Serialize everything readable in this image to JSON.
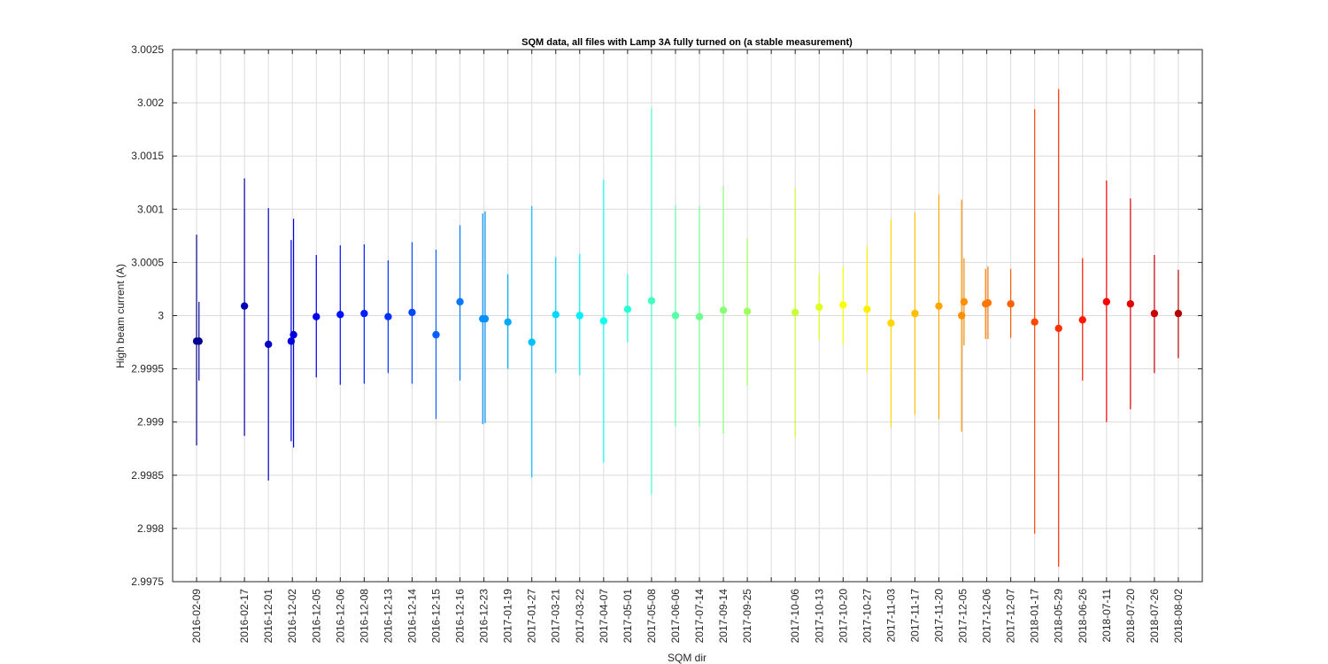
{
  "chart_data": {
    "type": "scatter",
    "title": "SQM data, all files with Lamp 3A fully turned on (a stable measurement)",
    "xlabel": "SQM dir",
    "ylabel": "High beam current (A)",
    "ylim": [
      2.9975,
      3.0025
    ],
    "yticks": [
      "2.9975",
      "2.998",
      "2.9985",
      "2.999",
      "2.9995",
      "3",
      "3.0005",
      "3.001",
      "3.0015",
      "3.002",
      "3.0025"
    ],
    "grid": true,
    "x_ticks": [
      "2016-02-09",
      "",
      "2016-02-17",
      "2016-12-01",
      "2016-12-02",
      "2016-12-05",
      "2016-12-06",
      "2016-12-08",
      "2016-12-13",
      "2016-12-14",
      "2016-12-15",
      "2016-12-16",
      "2016-12-23",
      "2017-01-19",
      "2017-01-27",
      "2017-03-21",
      "2017-03-22",
      "2017-04-07",
      "2017-05-01",
      "2017-05-08",
      "2017-06-06",
      "2017-07-14",
      "2017-09-14",
      "2017-09-25",
      "",
      "2017-10-06",
      "2017-10-13",
      "2017-10-20",
      "2017-10-27",
      "2017-11-03",
      "2017-11-17",
      "2017-11-20",
      "2017-12-05",
      "2017-12-06",
      "2017-12-07",
      "2018-01-17",
      "2018-05-29",
      "2018-06-26",
      "2018-07-11",
      "2018-07-20",
      "2018-07-26",
      "2018-08-02",
      ""
    ],
    "points": [
      {
        "x": 1.0,
        "y": 2.99976,
        "lo": 2.99878,
        "hi": 3.00076,
        "color": "#00008f"
      },
      {
        "x": 1.1,
        "y": 2.99976,
        "lo": 2.99939,
        "hi": 3.00013,
        "color": "#00008f"
      },
      {
        "x": 3.0,
        "y": 3.00009,
        "lo": 2.99887,
        "hi": 3.00129,
        "color": "#0000b4"
      },
      {
        "x": 4.0,
        "y": 2.99973,
        "lo": 2.99845,
        "hi": 3.00101,
        "color": "#0000c8"
      },
      {
        "x": 4.95,
        "y": 2.99976,
        "lo": 2.99882,
        "hi": 3.00071,
        "color": "#0000dc"
      },
      {
        "x": 5.05,
        "y": 2.99982,
        "lo": 2.99876,
        "hi": 3.00091,
        "color": "#0000dc"
      },
      {
        "x": 6.0,
        "y": 2.99999,
        "lo": 2.99942,
        "hi": 3.00057,
        "color": "#0000f0"
      },
      {
        "x": 7.0,
        "y": 3.00001,
        "lo": 2.99935,
        "hi": 3.00066,
        "color": "#0010ff"
      },
      {
        "x": 8.0,
        "y": 3.00002,
        "lo": 2.99936,
        "hi": 3.00067,
        "color": "#0020ff"
      },
      {
        "x": 9.0,
        "y": 2.99999,
        "lo": 2.99946,
        "hi": 3.00052,
        "color": "#0030ff"
      },
      {
        "x": 10.0,
        "y": 3.00003,
        "lo": 2.99936,
        "hi": 3.00069,
        "color": "#0048ff"
      },
      {
        "x": 11.0,
        "y": 2.99982,
        "lo": 2.99903,
        "hi": 3.00062,
        "color": "#0060ff"
      },
      {
        "x": 12.0,
        "y": 3.00013,
        "lo": 2.99939,
        "hi": 3.00085,
        "color": "#0078ff"
      },
      {
        "x": 12.95,
        "y": 2.99997,
        "lo": 2.99898,
        "hi": 3.00096,
        "color": "#0090ff"
      },
      {
        "x": 13.05,
        "y": 2.99997,
        "lo": 2.99899,
        "hi": 3.00098,
        "color": "#0090ff"
      },
      {
        "x": 14.0,
        "y": 2.99994,
        "lo": 2.9995,
        "hi": 3.00039,
        "color": "#00a8ff"
      },
      {
        "x": 15.0,
        "y": 2.99975,
        "lo": 2.99848,
        "hi": 3.00103,
        "color": "#00c0ff"
      },
      {
        "x": 16.0,
        "y": 3.00001,
        "lo": 2.99946,
        "hi": 3.00055,
        "color": "#00d8ff"
      },
      {
        "x": 17.0,
        "y": 3.0,
        "lo": 2.99944,
        "hi": 3.00058,
        "color": "#00f0ff"
      },
      {
        "x": 18.0,
        "y": 2.99995,
        "lo": 2.99862,
        "hi": 3.00128,
        "color": "#10ffef"
      },
      {
        "x": 19.0,
        "y": 3.00006,
        "lo": 2.99975,
        "hi": 3.00039,
        "color": "#28ffd7"
      },
      {
        "x": 20.0,
        "y": 3.00014,
        "lo": 2.99832,
        "hi": 3.00195,
        "color": "#40ffbf"
      },
      {
        "x": 21.0,
        "y": 3.0,
        "lo": 2.99896,
        "hi": 3.00104,
        "color": "#58ffa7"
      },
      {
        "x": 22.0,
        "y": 2.99999,
        "lo": 2.99896,
        "hi": 3.00103,
        "color": "#70ff8f"
      },
      {
        "x": 23.0,
        "y": 3.00005,
        "lo": 2.99889,
        "hi": 3.00122,
        "color": "#88ff77"
      },
      {
        "x": 24.0,
        "y": 3.00004,
        "lo": 2.99934,
        "hi": 3.00073,
        "color": "#a0ff5f"
      },
      {
        "x": 26.0,
        "y": 3.00003,
        "lo": 2.99886,
        "hi": 3.0012,
        "color": "#c8ff37"
      },
      {
        "x": 27.0,
        "y": 3.00008,
        "lo": 2.99977,
        "hi": 3.00039,
        "color": "#e0ff1f"
      },
      {
        "x": 28.0,
        "y": 3.0001,
        "lo": 2.99973,
        "hi": 3.00046,
        "color": "#f8ff07"
      },
      {
        "x": 29.0,
        "y": 3.00006,
        "lo": 2.99947,
        "hi": 3.00065,
        "color": "#ffef00"
      },
      {
        "x": 30.0,
        "y": 2.99993,
        "lo": 2.99895,
        "hi": 3.0009,
        "color": "#ffd700"
      },
      {
        "x": 31.0,
        "y": 3.00002,
        "lo": 2.99907,
        "hi": 3.00097,
        "color": "#ffbf00"
      },
      {
        "x": 32.0,
        "y": 3.00009,
        "lo": 2.99903,
        "hi": 3.00114,
        "color": "#ffa700"
      },
      {
        "x": 32.95,
        "y": 3.0,
        "lo": 2.99891,
        "hi": 3.00109,
        "color": "#ff8f00"
      },
      {
        "x": 33.05,
        "y": 3.00013,
        "lo": 2.99972,
        "hi": 3.00054,
        "color": "#ff8f00"
      },
      {
        "x": 33.95,
        "y": 3.00011,
        "lo": 2.99978,
        "hi": 3.00044,
        "color": "#ff7700"
      },
      {
        "x": 34.05,
        "y": 3.00012,
        "lo": 2.99978,
        "hi": 3.00046,
        "color": "#ff7700"
      },
      {
        "x": 35.0,
        "y": 3.00011,
        "lo": 2.99979,
        "hi": 3.00044,
        "color": "#ff6000"
      },
      {
        "x": 36.0,
        "y": 2.99994,
        "lo": 2.99795,
        "hi": 3.00194,
        "color": "#ff4800"
      },
      {
        "x": 37.0,
        "y": 2.99988,
        "lo": 2.99764,
        "hi": 3.00213,
        "color": "#ff3000"
      },
      {
        "x": 38.0,
        "y": 2.99996,
        "lo": 2.99939,
        "hi": 3.00054,
        "color": "#ff1800"
      },
      {
        "x": 39.0,
        "y": 3.00013,
        "lo": 2.999,
        "hi": 3.00127,
        "color": "#ff0000"
      },
      {
        "x": 40.0,
        "y": 3.00011,
        "lo": 2.99912,
        "hi": 3.0011,
        "color": "#e00000"
      },
      {
        "x": 41.0,
        "y": 3.00002,
        "lo": 2.99946,
        "hi": 3.00057,
        "color": "#c80000"
      },
      {
        "x": 42.0,
        "y": 3.00002,
        "lo": 2.9996,
        "hi": 3.00043,
        "color": "#b40000"
      }
    ]
  }
}
